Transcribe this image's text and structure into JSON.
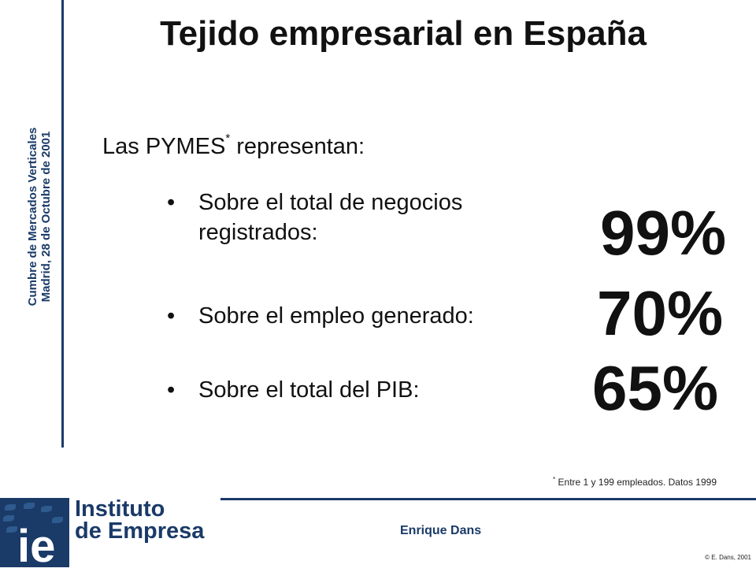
{
  "sidebar": {
    "line1": "Cumbre de Mercados Verticales",
    "line2": "Madrid, 28 de Octubre de 2001"
  },
  "slide": {
    "title": "Tejido empresarial en España",
    "intro_prefix": "Las PYMES",
    "intro_sup": "*",
    "intro_suffix": " representan:",
    "bullets": [
      {
        "text": "Sobre el total de negocios registrados:",
        "value": "99%"
      },
      {
        "text": "Sobre el empleo generado:",
        "value": "70%"
      },
      {
        "text": "Sobre el total del PIB:",
        "value": "65%"
      }
    ],
    "bullet_char": "•",
    "footnote_sup": "*",
    "footnote": " Entre 1 y 199 empleados. Datos 1999"
  },
  "footer": {
    "logo_mark": "ie",
    "logo_line1": "Instituto",
    "logo_line2": "de Empresa",
    "author": "Enrique Dans",
    "copyright": "© E. Dans, 2001"
  },
  "colors": {
    "accent": "#1a3a68"
  }
}
